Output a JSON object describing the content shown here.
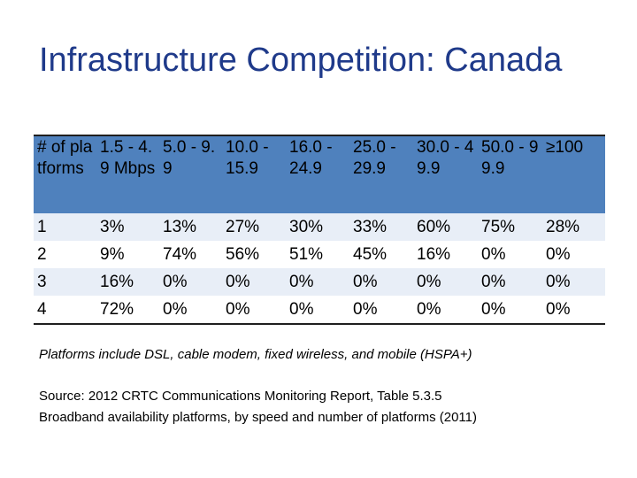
{
  "title": "Infrastructure Competition: Canada",
  "table": {
    "headers": [
      "# of platforms",
      "1.5 - 4.9 Mbps",
      "5.0 - 9.9",
      "10.0 - 15.9",
      "16.0 - 24.9",
      "25.0 - 29.9",
      "30.0 - 49.9",
      "50.0 - 99.9",
      "≥100"
    ],
    "rows": [
      [
        "1",
        "3%",
        "13%",
        "27%",
        "30%",
        "33%",
        "60%",
        "75%",
        "28%"
      ],
      [
        "2",
        "9%",
        "74%",
        "56%",
        "51%",
        "45%",
        "16%",
        "0%",
        "0%"
      ],
      [
        "3",
        "16%",
        "0%",
        "0%",
        "0%",
        "0%",
        "0%",
        "0%",
        "0%"
      ],
      [
        "4",
        "72%",
        "0%",
        "0%",
        "0%",
        "0%",
        "0%",
        "0%",
        "0%"
      ]
    ]
  },
  "note": "Platforms include DSL, cable modem, fixed wireless, and mobile (HSPA+)",
  "source": {
    "line1": "Source: 2012 CRTC Communications Monitoring Report, Table 5.3.5",
    "line2": "Broadband availability platforms, by speed and number of platforms (2011)"
  }
}
